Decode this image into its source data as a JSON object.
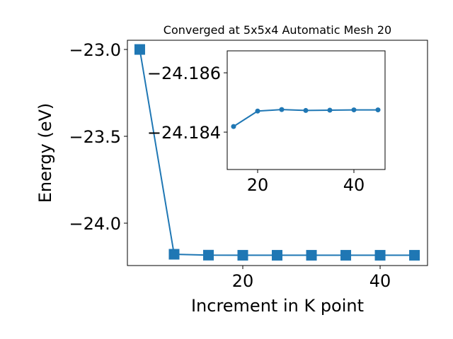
{
  "chart_data": [
    {
      "type": "line",
      "title": "Converged at 5x5x4 Automatic Mesh 20",
      "xlabel": "Increment in K point",
      "ylabel": "Energy (eV)",
      "x": [
        5,
        10,
        15,
        20,
        25,
        30,
        35,
        40,
        45
      ],
      "series": [
        {
          "name": "Energy",
          "color": "#1f77b4",
          "marker": "square",
          "values": [
            -23.0,
            -24.179,
            -24.18419,
            -24.18471,
            -24.18476,
            -24.18473,
            -24.18474,
            -24.18475,
            -24.18475
          ]
        }
      ],
      "xlim": [
        3.2,
        46.9
      ],
      "ylim": [
        -24.244,
        -22.947
      ],
      "xticks": [
        20,
        40
      ],
      "yticks": [
        {
          "value": -23.0,
          "label": "−23.0"
        },
        {
          "value": -23.5,
          "label": "−23.5"
        },
        {
          "value": -24.0,
          "label": "−24.0"
        }
      ]
    },
    {
      "type": "line",
      "x": [
        15,
        20,
        25,
        30,
        35,
        40,
        45
      ],
      "series": [
        {
          "name": "Energy",
          "color": "#1f77b4",
          "marker": "circle",
          "values": [
            -24.18419,
            -24.18471,
            -24.18476,
            -24.18473,
            -24.18474,
            -24.18475,
            -24.18475
          ]
        }
      ],
      "xlim": [
        13.68,
        46.47
      ],
      "ylim": [
        -24.18274,
        -24.18674
      ],
      "xticks": [
        20,
        40
      ],
      "yticks": [
        {
          "value": -24.186,
          "label": "−24.186"
        },
        {
          "value": -24.184,
          "label": "−24.184"
        }
      ]
    }
  ]
}
